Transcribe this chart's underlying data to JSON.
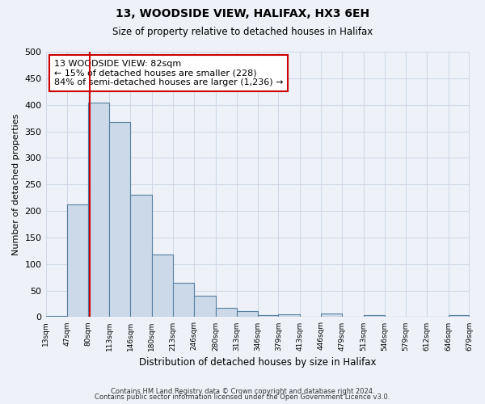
{
  "title": "13, WOODSIDE VIEW, HALIFAX, HX3 6EH",
  "subtitle": "Size of property relative to detached houses in Halifax",
  "xlabel": "Distribution of detached houses by size in Halifax",
  "ylabel": "Number of detached properties",
  "bar_color": "#ccd9e8",
  "bar_edge_color": "#5580a0",
  "bar_heights": [
    2,
    213,
    404,
    368,
    230,
    118,
    65,
    40,
    18,
    12,
    4,
    5,
    1,
    7,
    1,
    3,
    0,
    0,
    0,
    3
  ],
  "bin_labels": [
    "13sqm",
    "47sqm",
    "80sqm",
    "113sqm",
    "146sqm",
    "180sqm",
    "213sqm",
    "246sqm",
    "280sqm",
    "313sqm",
    "346sqm",
    "379sqm",
    "413sqm",
    "446sqm",
    "479sqm",
    "513sqm",
    "546sqm",
    "579sqm",
    "612sqm",
    "646sqm",
    "679sqm"
  ],
  "bin_edges": [
    13,
    47,
    80,
    113,
    146,
    180,
    213,
    246,
    280,
    313,
    346,
    379,
    413,
    446,
    479,
    513,
    546,
    579,
    612,
    646,
    679
  ],
  "ylim": [
    0,
    500
  ],
  "yticks": [
    0,
    50,
    100,
    150,
    200,
    250,
    300,
    350,
    400,
    450,
    500
  ],
  "property_size": 82,
  "property_label": "13 WOODSIDE VIEW: 82sqm",
  "annotation_line1": "← 15% of detached houses are smaller (228)",
  "annotation_line2": "84% of semi-detached houses are larger (1,236) →",
  "vline_color": "#cc0000",
  "box_edge_color": "#cc0000",
  "background_color": "#eef2f8",
  "grid_color": "#d0d8e8",
  "footnote1": "Contains HM Land Registry data © Crown copyright and database right 2024.",
  "footnote2": "Contains public sector information licensed under the Open Government Licence v3.0."
}
